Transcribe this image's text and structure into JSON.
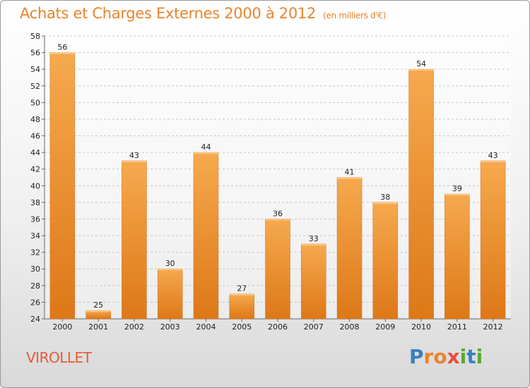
{
  "header": {
    "title": "Achats et Charges Externes 2000 à 2012",
    "subtitle": "(en milliers d'€)"
  },
  "footer": {
    "commune": "VIROLLET",
    "brand": "Proxiti"
  },
  "colors": {
    "bar_light": "#f6a94e",
    "bar_dark": "#dd7818",
    "title": "#e8852c",
    "commune": "#e85a3c",
    "grid": "#c8c8c8"
  },
  "chart_data": {
    "type": "bar",
    "title": "Achats et Charges Externes 2000 à 2012",
    "subtitle": "(en milliers d'€)",
    "categories": [
      "2000",
      "2001",
      "2002",
      "2003",
      "2004",
      "2005",
      "2006",
      "2007",
      "2008",
      "2009",
      "2010",
      "2011",
      "2012"
    ],
    "values": [
      56,
      25,
      43,
      30,
      44,
      27,
      36,
      33,
      41,
      38,
      54,
      39,
      43
    ],
    "ylim": [
      24,
      58
    ],
    "yticks": [
      24,
      26,
      28,
      30,
      32,
      34,
      36,
      38,
      40,
      42,
      44,
      46,
      48,
      50,
      52,
      54,
      56,
      58
    ],
    "grid": true,
    "legend": "none",
    "data_labels": true
  }
}
